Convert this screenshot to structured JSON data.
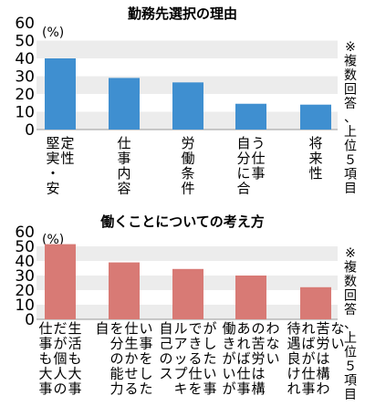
{
  "chart_data": [
    {
      "type": "bar",
      "title": "勤務先選択の理由",
      "unit_label": "(%)",
      "note": "※複数回答、上位５項目",
      "ylim": [
        0,
        60
      ],
      "yticks": [
        0,
        10,
        20,
        30,
        40,
        50,
        60
      ],
      "grid": "alternating horizontal bands",
      "categories": [
        {
          "lines": [
            "定堅",
            "性実",
            "　・",
            "　安"
          ]
        },
        {
          "lines": [
            "仕",
            "事",
            "内",
            "容"
          ]
        },
        {
          "lines": [
            "労",
            "働",
            "条",
            "件"
          ]
        },
        {
          "lines": [
            "う自",
            "仕分",
            "事に",
            "　合"
          ]
        },
        {
          "lines": [
            "将",
            "来",
            "性"
          ]
        }
      ],
      "values": [
        40,
        29,
        26.5,
        14.5,
        14
      ],
      "bar_color": "#3f8fd0"
    },
    {
      "type": "bar",
      "title": "働くことについての考え方",
      "unit_label": "(%)",
      "note": "※複数回答、上位５項目",
      "ylim": [
        0,
        60
      ],
      "yticks": [
        0,
        10,
        20,
        30,
        40,
        50,
        60
      ],
      "grid": "alternating horizontal bands",
      "categories": [
        {
          "lines": [
            "生だ仕",
            "活が事",
            "も個も",
            "大人大",
            "事の事"
          ]
        },
        {
          "lines": [
            "い仕を自",
            "事生分",
            "をかの",
            "しせ能",
            "たる力"
          ]
        },
        {
          "lines": [
            "がでル自",
            "しきア己",
            "たるッの",
            "い仕プス",
            "事をキ"
          ]
        },
        {
          "lines": [
            "わのあ働",
            "な苦れき",
            "い労ばが",
            "　は仕い",
            "　構事が"
          ]
        },
        {
          "lines": [
            "な苦れ待",
            "い労ば遇",
            "　はが良",
            "　構仕け",
            "　わ事れ"
          ]
        }
      ],
      "values": [
        51.5,
        39,
        34.5,
        30,
        22
      ],
      "bar_color": "#d87a75"
    }
  ]
}
